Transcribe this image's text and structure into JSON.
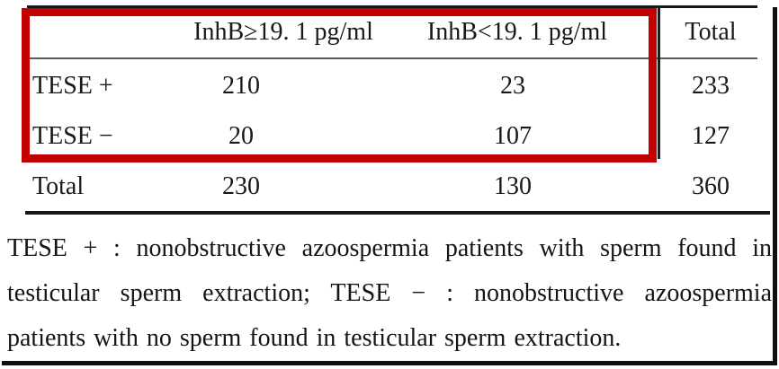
{
  "highlight": {
    "color": "#c20000",
    "label": "red rectangle over header and TESE rows of InhB columns"
  },
  "table": {
    "columns": [
      "",
      "InhB≥19. 1 pg/ml",
      "InhB<19. 1 pg/ml",
      "Total"
    ],
    "rows": [
      {
        "label": "TESE +",
        "values": [
          "210",
          "23",
          "233"
        ]
      },
      {
        "label": "TESE −",
        "values": [
          "20",
          "107",
          "127"
        ]
      },
      {
        "label": "Total",
        "values": [
          "230",
          "130",
          "360"
        ]
      }
    ]
  },
  "footnote": {
    "line1": "TESE + : nonobstructive azoospermia patients with sperm found in",
    "line2": "testicular sperm extraction; TESE − : nonobstructive azoospermia",
    "line3": "patients with no sperm found in testicular sperm extraction."
  },
  "chart_data": {
    "type": "table",
    "columns": [
      "",
      "InhB≥19. 1 pg/ml",
      "InhB<19. 1 pg/ml",
      "Total"
    ],
    "rows": [
      [
        "TESE +",
        210,
        23,
        233
      ],
      [
        "TESE −",
        20,
        107,
        127
      ],
      [
        "Total",
        230,
        130,
        360
      ]
    ]
  }
}
